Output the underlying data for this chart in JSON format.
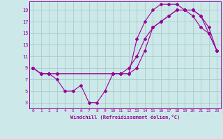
{
  "xlabel": "Windchill (Refroidissement éolien,°C)",
  "bg_color": "#cce8e8",
  "grid_color": "#aacccc",
  "line_color": "#990099",
  "xlim": [
    -0.5,
    23.5
  ],
  "ylim": [
    2,
    20.5
  ],
  "xticks": [
    0,
    1,
    2,
    3,
    4,
    5,
    6,
    7,
    8,
    9,
    10,
    11,
    12,
    13,
    14,
    15,
    16,
    17,
    18,
    19,
    20,
    21,
    22,
    23
  ],
  "yticks": [
    3,
    5,
    7,
    9,
    11,
    13,
    15,
    17,
    19
  ],
  "series1_x": [
    0,
    1,
    2,
    3,
    4,
    5,
    6,
    7,
    8,
    9,
    10,
    11,
    12,
    13,
    14,
    15,
    16,
    17,
    18,
    19,
    20,
    21,
    22,
    23
  ],
  "series1_y": [
    9,
    8,
    8,
    7,
    5,
    5,
    6,
    3,
    3,
    5,
    8,
    8,
    8,
    14,
    17,
    19,
    20,
    20,
    20,
    19,
    19,
    18,
    15,
    12
  ],
  "series2_x": [
    0,
    1,
    2,
    3,
    10,
    11,
    12,
    13,
    14,
    15,
    16,
    17,
    18,
    19,
    20,
    21,
    22,
    23
  ],
  "series2_y": [
    9,
    8,
    8,
    8,
    8,
    8,
    9,
    11,
    14,
    16,
    17,
    18,
    19,
    19,
    19,
    18,
    16,
    12
  ],
  "series3_x": [
    0,
    1,
    2,
    3,
    10,
    11,
    12,
    13,
    14,
    15,
    16,
    17,
    18,
    19,
    20,
    21,
    22,
    23
  ],
  "series3_y": [
    9,
    8,
    8,
    8,
    8,
    8,
    8,
    9,
    12,
    16,
    17,
    18,
    19,
    19,
    18,
    16,
    15,
    12
  ]
}
